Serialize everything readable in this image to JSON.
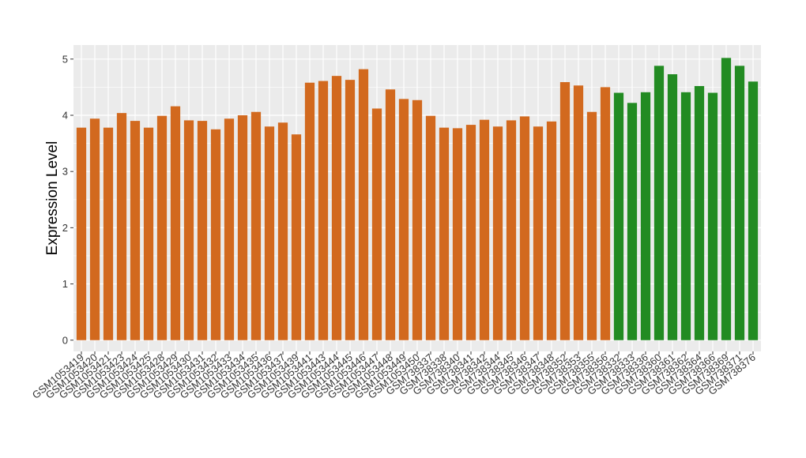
{
  "chart_data": {
    "type": "bar",
    "title": "",
    "xlabel": "",
    "ylabel": "Expression Level",
    "ylim": [
      -0.2,
      5.25
    ],
    "yticks": [
      0,
      1,
      2,
      3,
      4,
      5
    ],
    "grid": true,
    "legend": "none",
    "colors": {
      "group_1": "#D2691E",
      "group_2": "#228B22",
      "panel_bg": "#EBEBEB",
      "grid": "#FFFFFF"
    },
    "categories": [
      "GSM1053419",
      "GSM1053420",
      "GSM1053421",
      "GSM1053423",
      "GSM1053424",
      "GSM1053425",
      "GSM1053428",
      "GSM1053429",
      "GSM1053430",
      "GSM1053431",
      "GSM1053432",
      "GSM1053433",
      "GSM1053434",
      "GSM1053435",
      "GSM1053436",
      "GSM1053437",
      "GSM1053439",
      "GSM1053441",
      "GSM1053443",
      "GSM1053444",
      "GSM1053445",
      "GSM1053446",
      "GSM1053447",
      "GSM1053448",
      "GSM1053449",
      "GSM1053450",
      "GSM738337",
      "GSM738338",
      "GSM738340",
      "GSM738341",
      "GSM738342",
      "GSM738344",
      "GSM738345",
      "GSM738346",
      "GSM738347",
      "GSM738348",
      "GSM738352",
      "GSM738353",
      "GSM738355",
      "GSM738356",
      "GSM738332",
      "GSM738333",
      "GSM738336",
      "GSM738360",
      "GSM738361",
      "GSM738362",
      "GSM738364",
      "GSM738366",
      "GSM738369",
      "GSM738371",
      "GSM738376"
    ],
    "values": [
      3.78,
      3.94,
      3.78,
      4.04,
      3.9,
      3.78,
      3.99,
      4.16,
      3.91,
      3.9,
      3.75,
      3.94,
      4.0,
      4.06,
      3.8,
      3.87,
      3.66,
      4.58,
      4.61,
      4.7,
      4.63,
      4.82,
      4.12,
      4.46,
      4.29,
      4.27,
      3.99,
      3.78,
      3.77,
      3.83,
      3.92,
      3.8,
      3.91,
      3.98,
      3.8,
      3.89,
      4.59,
      4.53,
      4.06,
      4.5,
      4.4,
      4.22,
      4.41,
      4.88,
      4.73,
      4.41,
      4.52,
      4.4,
      5.02,
      4.88,
      4.6
    ],
    "groups": [
      1,
      1,
      1,
      1,
      1,
      1,
      1,
      1,
      1,
      1,
      1,
      1,
      1,
      1,
      1,
      1,
      1,
      1,
      1,
      1,
      1,
      1,
      1,
      1,
      1,
      1,
      1,
      1,
      1,
      1,
      1,
      1,
      1,
      1,
      1,
      1,
      1,
      1,
      1,
      1,
      2,
      2,
      2,
      2,
      2,
      2,
      2,
      2,
      2,
      2,
      2
    ]
  }
}
